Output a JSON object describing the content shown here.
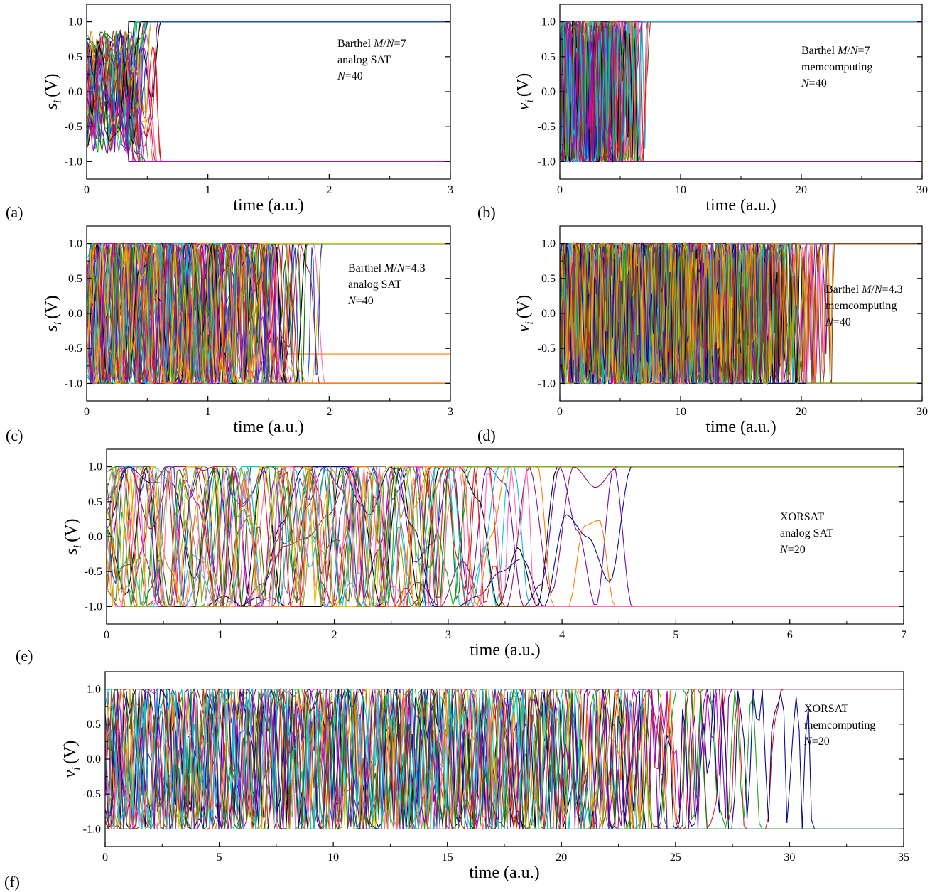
{
  "figure_title": "",
  "chart_data": [
    {
      "id": "a",
      "panel_label": "(a)",
      "type": "line",
      "xlabel": "time (a.u.)",
      "ylabel": "s",
      "ylabel_sub": "i",
      "ylabel_unit": "(V)",
      "xlim": [
        0,
        3
      ],
      "ylim": [
        -1.25,
        1.25
      ],
      "xticks": [
        0,
        1,
        2,
        3
      ],
      "xtick_labels": [
        "0",
        "1",
        "2",
        "3"
      ],
      "yticks": [
        -1.0,
        -0.5,
        0.0,
        0.5,
        1.0
      ],
      "ytick_labels": [
        "-1.0",
        "-0.5",
        "0.0",
        "0.5",
        "1.0"
      ],
      "annotation_lines": [
        {
          "pre": "Barthel ",
          "mid_italic": "M",
          "mid": "/",
          "mid_italic2": "N",
          "post": "=7"
        },
        {
          "pre": "analog SAT"
        },
        {
          "pre": "",
          "mid_italic": "N",
          "post": "=40"
        }
      ],
      "trajectory": {
        "settle_time": 0.62,
        "pos_final": 1.0,
        "neg_final": -1.0,
        "residual_level": null,
        "series_count": 40
      }
    },
    {
      "id": "b",
      "panel_label": "(b)",
      "type": "line",
      "xlabel": "time (a.u.)",
      "ylabel": "v",
      "ylabel_sub": "i",
      "ylabel_unit": "(V)",
      "xlim": [
        0,
        30
      ],
      "ylim": [
        -1.25,
        1.25
      ],
      "xticks": [
        0,
        10,
        20,
        30
      ],
      "xtick_labels": [
        "0",
        "10",
        "20",
        "30"
      ],
      "yticks": [
        -1.0,
        -0.5,
        0.0,
        0.5,
        1.0
      ],
      "ytick_labels": [
        "-1.0",
        "-0.5",
        "0.0",
        "0.5",
        "1.0"
      ],
      "annotation_lines": [
        {
          "pre": "Barthel ",
          "mid_italic": "M",
          "mid": "/",
          "mid_italic2": "N",
          "post": "=7"
        },
        {
          "pre": "memcomputing"
        },
        {
          "pre": "",
          "mid_italic": "N",
          "post": "=40"
        }
      ],
      "trajectory": {
        "settle_time": 7.5,
        "pos_final": 1.0,
        "neg_final": -1.0,
        "residual_level": null,
        "series_count": 40
      }
    },
    {
      "id": "c",
      "panel_label": "(c)",
      "type": "line",
      "xlabel": "time (a.u.)",
      "ylabel": "s",
      "ylabel_sub": "i",
      "ylabel_unit": "(V)",
      "xlim": [
        0,
        3
      ],
      "ylim": [
        -1.25,
        1.25
      ],
      "xticks": [
        0,
        1,
        2,
        3
      ],
      "xtick_labels": [
        "0",
        "1",
        "2",
        "3"
      ],
      "yticks": [
        -1.0,
        -0.5,
        0.0,
        0.5,
        1.0
      ],
      "ytick_labels": [
        "-1.0",
        "-0.5",
        "0.0",
        "0.5",
        "1.0"
      ],
      "annotation_lines": [
        {
          "pre": "Barthel ",
          "mid_italic": "M",
          "mid": "/",
          "mid_italic2": "N",
          "post": "=4.3"
        },
        {
          "pre": "analog SAT"
        },
        {
          "pre": "",
          "mid_italic": "N",
          "post": "=40"
        }
      ],
      "trajectory": {
        "settle_time": 2.0,
        "pos_final": 1.0,
        "neg_final": -1.0,
        "residual_level": -0.58,
        "series_count": 40
      }
    },
    {
      "id": "d",
      "panel_label": "(d)",
      "type": "line",
      "xlabel": "time (a.u.)",
      "ylabel": "v",
      "ylabel_sub": "i",
      "ylabel_unit": "(V)",
      "xlim": [
        0,
        30
      ],
      "ylim": [
        -1.25,
        1.25
      ],
      "xticks": [
        0,
        10,
        20,
        30
      ],
      "xtick_labels": [
        "0",
        "10",
        "20",
        "30"
      ],
      "yticks": [
        -1.0,
        -0.5,
        0.0,
        0.5,
        1.0
      ],
      "ytick_labels": [
        "-1.0",
        "-0.5",
        "0.0",
        "0.5",
        "1.0"
      ],
      "annotation_lines": [
        {
          "pre": "Barthel ",
          "mid_italic": "M",
          "mid": "/",
          "mid_italic2": "N",
          "post": "=4.3"
        },
        {
          "pre": "memcomputing"
        },
        {
          "pre": "",
          "mid_italic": "N",
          "post": "=40"
        }
      ],
      "trajectory": {
        "settle_time": 23.0,
        "pos_final": 1.0,
        "neg_final": -1.0,
        "residual_level": null,
        "series_count": 40
      }
    },
    {
      "id": "e",
      "panel_label": "(e)",
      "type": "line",
      "xlabel": "time (a.u.)",
      "ylabel": "s",
      "ylabel_sub": "i",
      "ylabel_unit": "(V)",
      "xlim": [
        0,
        7
      ],
      "ylim": [
        -1.25,
        1.25
      ],
      "xticks": [
        0,
        1,
        2,
        3,
        4,
        5,
        6,
        7
      ],
      "xtick_labels": [
        "0",
        "1",
        "2",
        "3",
        "4",
        "5",
        "6",
        "7"
      ],
      "yticks": [
        -1.0,
        -0.5,
        0.0,
        0.5,
        1.0
      ],
      "ytick_labels": [
        "-1.0",
        "-0.5",
        "0.0",
        "0.5",
        "1.0"
      ],
      "annotation_lines": [
        {
          "pre": "XORSAT"
        },
        {
          "pre": "analog SAT"
        },
        {
          "pre": "",
          "mid_italic": "N",
          "post": "=20"
        }
      ],
      "trajectory": {
        "settle_time": 4.86,
        "pos_final": 1.0,
        "neg_final": -1.0,
        "residual_level": null,
        "series_count": 20
      }
    },
    {
      "id": "f",
      "panel_label": "(f)",
      "type": "line",
      "xlabel": "time (a.u.)",
      "ylabel": "v",
      "ylabel_sub": "i",
      "ylabel_unit": "(V)",
      "xlim": [
        0,
        35
      ],
      "ylim": [
        -1.25,
        1.25
      ],
      "xticks": [
        0,
        5,
        10,
        15,
        20,
        25,
        30,
        35
      ],
      "xtick_labels": [
        "0",
        "5",
        "10",
        "15",
        "20",
        "25",
        "30",
        "35"
      ],
      "yticks": [
        -1.0,
        -0.5,
        0.0,
        0.5,
        1.0
      ],
      "ytick_labels": [
        "-1.0",
        "-0.5",
        "0.0",
        "0.5",
        "1.0"
      ],
      "annotation_lines": [
        {
          "pre": "XORSAT"
        },
        {
          "pre": "memcomputing"
        },
        {
          "pre": "",
          "mid_italic": "N",
          "post": "=20"
        }
      ],
      "trajectory": {
        "settle_time": 31.0,
        "pos_final": 1.0,
        "neg_final": -1.0,
        "residual_level": null,
        "series_count": 20
      }
    }
  ],
  "series_colors": [
    "#000000",
    "#e41a1c",
    "#1f3fd8",
    "#c800c8",
    "#1aa51a",
    "#14b4d2",
    "#8c1a6a",
    "#808080",
    "#e0c000",
    "#ff7f00",
    "#0a0a8c",
    "#7a4a10",
    "#8faa1f",
    "#ff69b4",
    "#0f6e0f",
    "#6a0dad",
    "#00ced1",
    "#b22222"
  ]
}
